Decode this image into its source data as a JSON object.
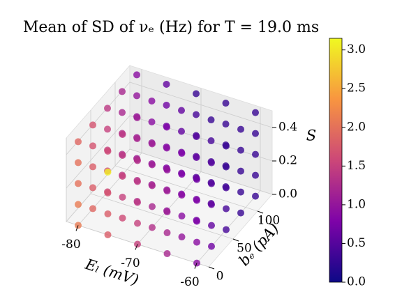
{
  "chart_data": {
    "type": "scatter3d",
    "title": "Mean of SD of νₑ (Hz) for T = 19.0 ms",
    "xlabel": "Eₗ (mV)",
    "ylabel": "bₑ (pA)",
    "zlabel": "S",
    "x": [
      -80,
      -75,
      -70,
      -65,
      -60
    ],
    "y": [
      0,
      30,
      60,
      90,
      120
    ],
    "z": [
      0,
      0.125,
      0.25,
      0.375,
      0.5
    ],
    "values": [
      [
        [
          2.1,
          2.1,
          2.0,
          2.0,
          1.9
        ],
        [
          1.9,
          1.8,
          1.8,
          1.7,
          1.7
        ],
        [
          1.6,
          1.6,
          1.5,
          1.5,
          1.4
        ],
        [
          1.4,
          1.3,
          1.3,
          1.2,
          1.2
        ],
        [
          1.1,
          1.1,
          1.0,
          1.0,
          0.9
        ]
      ],
      [
        [
          1.8,
          1.8,
          1.7,
          3.1,
          1.6
        ],
        [
          1.6,
          1.5,
          1.5,
          1.4,
          1.4
        ],
        [
          1.3,
          1.3,
          1.2,
          1.2,
          1.1
        ],
        [
          1.1,
          1.0,
          1.0,
          0.9,
          0.9
        ],
        [
          0.8,
          0.8,
          0.7,
          0.7,
          0.6
        ]
      ],
      [
        [
          1.5,
          1.5,
          1.4,
          1.4,
          1.3
        ],
        [
          1.3,
          1.2,
          1.2,
          1.1,
          1.1
        ],
        [
          1.0,
          1.0,
          0.9,
          0.9,
          0.8
        ],
        [
          0.8,
          0.7,
          0.7,
          0.6,
          0.6
        ],
        [
          0.5,
          0.5,
          0.4,
          0.4,
          0.3
        ]
      ],
      [
        [
          1.2,
          1.2,
          1.1,
          1.1,
          1.0
        ],
        [
          1.0,
          0.9,
          0.9,
          0.8,
          0.8
        ],
        [
          0.7,
          0.7,
          0.6,
          0.6,
          0.5
        ],
        [
          0.5,
          0.4,
          0.4,
          0.4,
          0.3
        ],
        [
          0.3,
          0.3,
          0.3,
          0.3,
          0.3
        ]
      ],
      [
        [
          0.9,
          0.9,
          0.8,
          0.8,
          0.7
        ],
        [
          0.7,
          0.6,
          0.6,
          0.5,
          0.5
        ],
        [
          0.4,
          0.4,
          0.4,
          0.3,
          0.3
        ],
        [
          0.3,
          0.3,
          0.3,
          0.3,
          0.3
        ],
        [
          0.3,
          0.3,
          0.3,
          0.3,
          0.3
        ]
      ]
    ],
    "xlim": [
      -82,
      -58
    ],
    "xticks": [
      -80,
      -70,
      -60
    ],
    "ylim": [
      0,
      130
    ],
    "yticks": [
      0,
      50,
      100
    ],
    "zlim": [
      0,
      0.5
    ],
    "zticks": [
      {
        "value": 0,
        "label": "0.0"
      },
      {
        "value": 0.2,
        "label": "0.2"
      },
      {
        "value": 0.4,
        "label": "0.4"
      }
    ],
    "colormap": "plasma",
    "clim": [
      0,
      3.15
    ],
    "cticks": [
      {
        "value": 0,
        "label": "0.0"
      },
      {
        "value": 0.5,
        "label": "0.5"
      },
      {
        "value": 1,
        "label": "1.0"
      },
      {
        "value": 1.5,
        "label": "1.5"
      },
      {
        "value": 2,
        "label": "2.0"
      },
      {
        "value": 2.5,
        "label": "2.5"
      },
      {
        "value": 3,
        "label": "3.0"
      }
    ],
    "grid": true
  }
}
